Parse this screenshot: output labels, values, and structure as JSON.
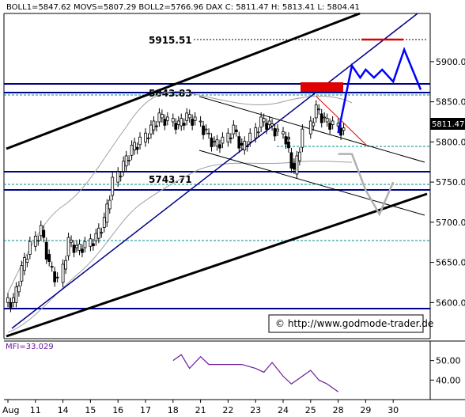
{
  "header": {
    "text": "BOLL1=5847.62 MOVS=5807.29 BOLL2=5766.96 DAX C: 5811.47 H: 5813.41 L: 5804.41"
  },
  "levels": [
    {
      "label": "5915.51",
      "value": 5915.51
    },
    {
      "label": "5843.83",
      "value": 5843.83
    },
    {
      "label": "5743.71",
      "value": 5743.71
    }
  ],
  "last_price_label": "5811.47",
  "source": "© http://www.godmode-trader.de",
  "mfi_label": "MFI=33.029",
  "colors": {
    "navy": "#00008b",
    "teal": "#008b8b",
    "red": "#e00000",
    "blue": "#0000ff",
    "gray": "#b0b0b0",
    "purple": "#6a1b9a"
  },
  "chart_data": {
    "type": "candlestick",
    "title": "DAX",
    "x_tick_labels": [
      "Aug",
      "11",
      "14",
      "15",
      "16",
      "17",
      "18",
      "21",
      "22",
      "23",
      "24",
      "25",
      "28",
      "29",
      "30"
    ],
    "y_ticks": [
      5600,
      5650,
      5700,
      5750,
      5800,
      5850,
      5900
    ],
    "ylim": [
      5555,
      5960
    ],
    "horizontal_levels": [
      5915.51,
      5860,
      5843.83,
      5752,
      5730,
      5588
    ],
    "close_path": [
      [
        0,
        5600
      ],
      [
        0.3,
        5640
      ],
      [
        0.6,
        5670
      ],
      [
        1,
        5690
      ],
      [
        1.3,
        5645
      ],
      [
        1.6,
        5625
      ],
      [
        2,
        5675
      ],
      [
        2.3,
        5665
      ],
      [
        2.6,
        5670
      ],
      [
        3,
        5680
      ],
      [
        3.3,
        5700
      ],
      [
        3.6,
        5750
      ],
      [
        4,
        5770
      ],
      [
        4.3,
        5790
      ],
      [
        4.6,
        5800
      ],
      [
        5,
        5815
      ],
      [
        5.3,
        5830
      ],
      [
        5.6,
        5825
      ],
      [
        6,
        5820
      ],
      [
        6.3,
        5830
      ],
      [
        6.6,
        5825
      ],
      [
        7,
        5810
      ],
      [
        7.3,
        5795
      ],
      [
        7.6,
        5800
      ],
      [
        8,
        5815
      ],
      [
        8.3,
        5790
      ],
      [
        8.6,
        5805
      ],
      [
        9,
        5825
      ],
      [
        9.3,
        5820
      ],
      [
        9.6,
        5810
      ],
      [
        10,
        5800
      ],
      [
        10.2,
        5760
      ],
      [
        10.5,
        5810
      ],
      [
        11,
        5840
      ],
      [
        11.3,
        5825
      ],
      [
        11.6,
        5820
      ],
      [
        12,
        5811.47
      ]
    ],
    "projection_bullish": [
      [
        12,
        5811
      ],
      [
        12.5,
        5895
      ],
      [
        12.8,
        5880
      ],
      [
        13,
        5890
      ],
      [
        13.3,
        5880
      ],
      [
        13.6,
        5890
      ],
      [
        14,
        5875
      ],
      [
        14.4,
        5915
      ],
      [
        15,
        5865
      ]
    ],
    "projection_bearish": [
      [
        12,
        5785
      ],
      [
        12.5,
        5785
      ],
      [
        13,
        5740
      ],
      [
        13.5,
        5710
      ],
      [
        14,
        5750
      ]
    ],
    "last_close": 5811.47,
    "mfi": {
      "label": "MFI=33.029",
      "y_ticks": [
        40,
        50
      ],
      "ylim": [
        30,
        60
      ],
      "values": [
        [
          6,
          50
        ],
        [
          6.3,
          53
        ],
        [
          6.6,
          46
        ],
        [
          7,
          52
        ],
        [
          7.3,
          48
        ],
        [
          8.5,
          48
        ],
        [
          9,
          46
        ],
        [
          9.3,
          44
        ],
        [
          9.6,
          49
        ],
        [
          10,
          42
        ],
        [
          10.3,
          38
        ],
        [
          10.6,
          41
        ],
        [
          11,
          45
        ],
        [
          11.3,
          40
        ],
        [
          11.6,
          38
        ],
        [
          12,
          34
        ]
      ]
    }
  }
}
